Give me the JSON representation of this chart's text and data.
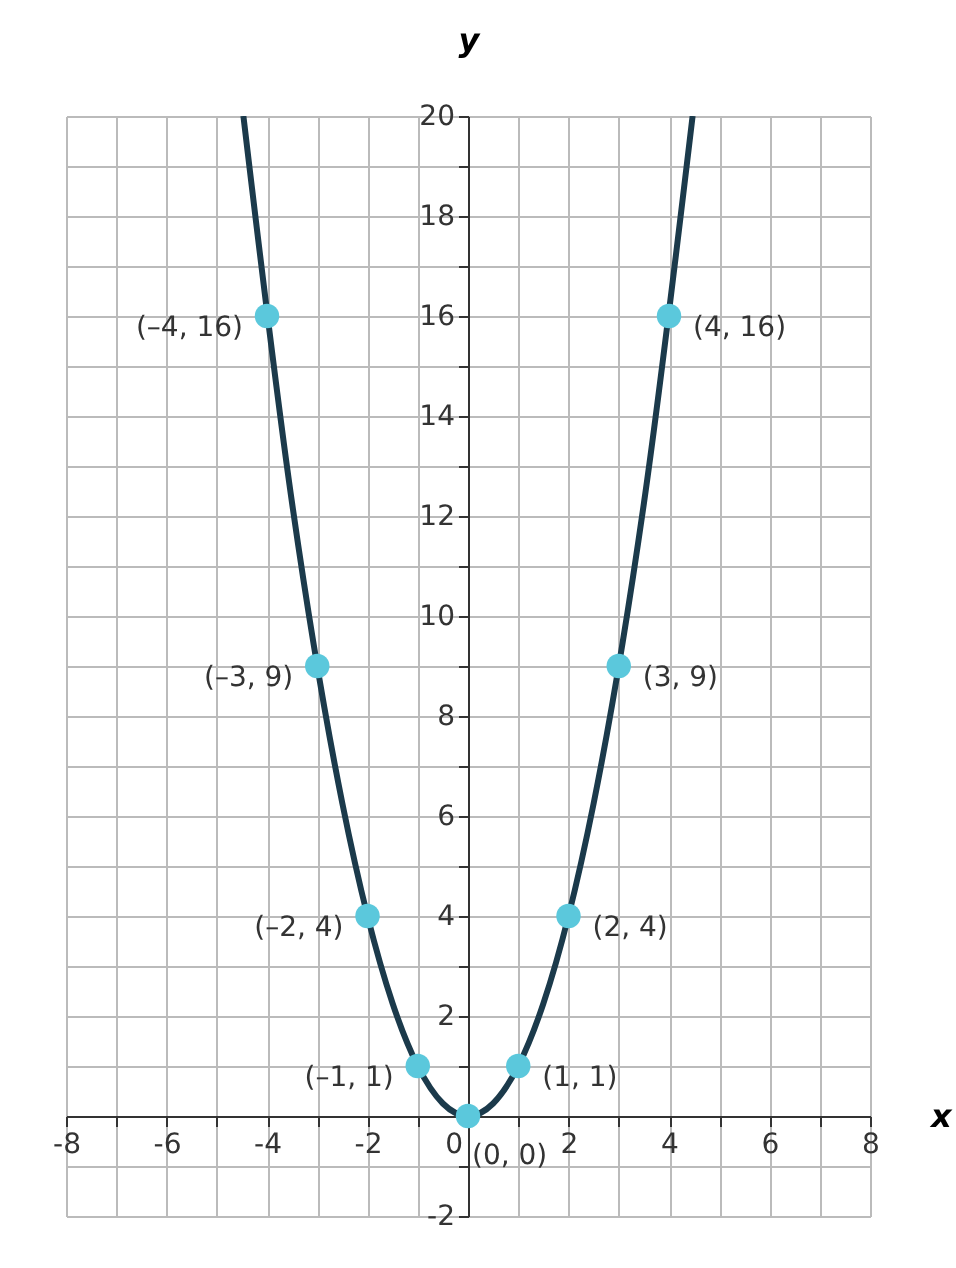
{
  "chart_data": {
    "type": "line",
    "xlabel": "x",
    "ylabel": "y",
    "xlim": [
      -8,
      8
    ],
    "ylim": [
      -2,
      20
    ],
    "grid": true,
    "xticks": [
      -8,
      {
        "value": -7,
        "label": null
      },
      -6,
      {
        "value": -5,
        "label": null
      },
      -4,
      {
        "value": -3,
        "label": null
      },
      -2,
      {
        "value": -1,
        "label": null
      },
      0,
      {
        "value": 1,
        "label": null
      },
      2,
      {
        "value": 3,
        "label": null
      },
      4,
      {
        "value": 5,
        "label": null
      },
      6,
      {
        "value": 7,
        "label": null
      },
      8
    ],
    "yticks": [
      -2,
      {
        "value": -1,
        "label": null
      },
      {
        "value": 0,
        "label": null
      },
      {
        "value": 1,
        "label": null
      },
      2,
      {
        "value": 3,
        "label": null
      },
      4,
      {
        "value": 5,
        "label": null
      },
      6,
      {
        "value": 7,
        "label": null
      },
      8,
      {
        "value": 9,
        "label": null
      },
      10,
      {
        "value": 11,
        "label": null
      },
      12,
      {
        "value": 13,
        "label": null
      },
      14,
      {
        "value": 15,
        "label": null
      },
      16,
      {
        "value": 17,
        "label": null
      },
      18,
      {
        "value": 19,
        "label": null
      },
      20
    ],
    "series": [
      {
        "type": "line",
        "color": "#1b3a4b",
        "x": [
          -4.47,
          -3.5,
          -2.5,
          -1.5,
          -1,
          -0.5,
          0,
          0.5,
          1,
          1.5,
          2.5,
          3.5,
          4.47
        ],
        "values": [
          20,
          12.25,
          6.25,
          2.25,
          1,
          0.25,
          0,
          0.25,
          1,
          2.25,
          6.25,
          12.25,
          20
        ]
      },
      {
        "type": "scatter",
        "color": "#5bc8dc",
        "x": [
          -4,
          -3,
          -2,
          -1,
          0,
          1,
          2,
          3,
          4
        ],
        "values": [
          16,
          9,
          4,
          1,
          0,
          1,
          4,
          9,
          16
        ],
        "value_labels": [
          "(–4, 16)",
          "(–3, 9)",
          "(–2, 4)",
          "(–1, 1)",
          "(0, 0)",
          "(1, 1)",
          "(2, 4)",
          "(3, 9)",
          "(4, 16)"
        ]
      }
    ]
  }
}
